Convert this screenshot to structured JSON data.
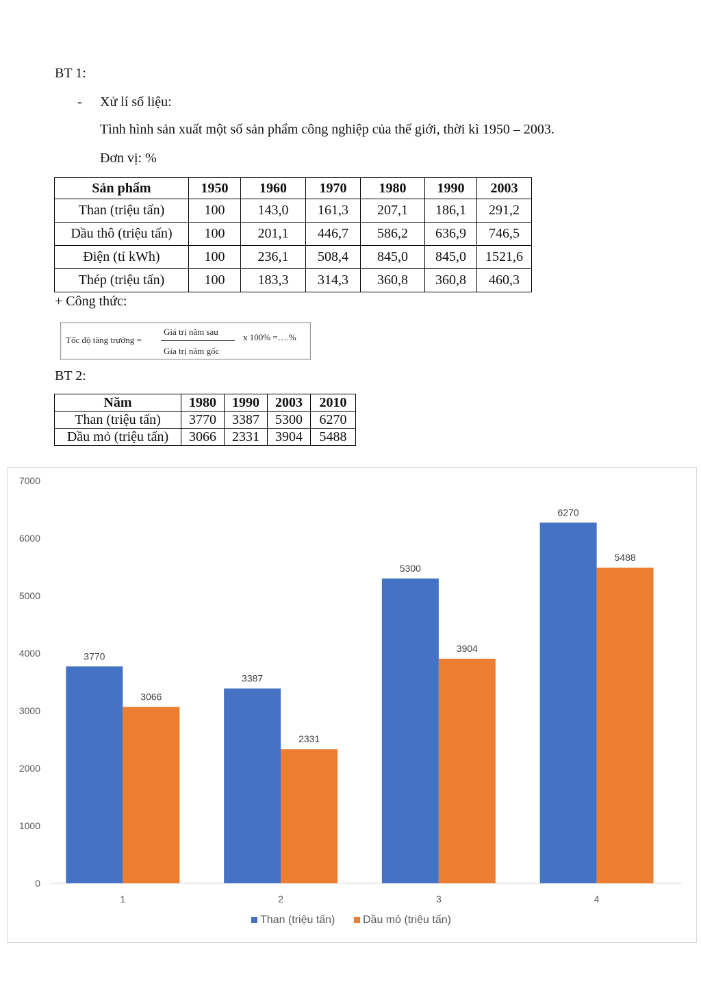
{
  "bt1": {
    "heading": "BT 1:",
    "bullet": "-",
    "step": "Xử lí số liệu:",
    "description": "Tình hình sản xuất một số sản phẩm công nghiệp của thế giới, thời kì 1950 – 2003.",
    "unit": "Đơn vị: %",
    "table": {
      "headers": [
        "Sản phẩm",
        "1950",
        "1960",
        "1970",
        "1980",
        "1990",
        "2003"
      ],
      "rows": [
        [
          "Than (triệu tấn)",
          "100",
          "143,0",
          "161,3",
          "207,1",
          "186,1",
          "291,2"
        ],
        [
          "Dầu thô (triệu tấn)",
          "100",
          "201,1",
          "446,7",
          "586,2",
          "636,9",
          "746,5"
        ],
        [
          "Điện (tỉ kWh)",
          "100",
          "236,1",
          "508,4",
          "845,0",
          "845,0",
          "1521,6"
        ],
        [
          "Thép (triệu tấn)",
          "100",
          "183,3",
          "314,3",
          "360,8",
          "360,8",
          "460,3"
        ]
      ]
    },
    "formula_label": "+ Công thức:",
    "formula": {
      "lhs": "Tốc độ tăng trưởng =",
      "numerator": "Giá trị năm sau",
      "denominator": "Gía trị năm gốc",
      "rhs": "x 100% =….%"
    }
  },
  "bt2": {
    "heading": "BT 2:",
    "table": {
      "headers": [
        "Năm",
        "1980",
        "1990",
        "2003",
        "2010"
      ],
      "rows": [
        [
          "Than (triệu tấn)",
          "3770",
          "3387",
          "5300",
          "6270"
        ],
        [
          "Dầu mỏ (triệu tấn)",
          "3066",
          "2331",
          "3904",
          "5488"
        ]
      ]
    }
  },
  "chart_data": {
    "type": "bar",
    "categories": [
      "1",
      "2",
      "3",
      "4"
    ],
    "series": [
      {
        "name": "Than (triệu tấn)",
        "values": [
          3770,
          3387,
          5300,
          6270
        ],
        "color": "#4472C4"
      },
      {
        "name": "Dầu mỏ (triệu tấn)",
        "values": [
          3066,
          2331,
          3904,
          5488
        ],
        "color": "#ED7D31"
      }
    ],
    "ylim": [
      0,
      7000
    ],
    "yticks": [
      0,
      1000,
      2000,
      3000,
      4000,
      5000,
      6000,
      7000
    ],
    "grid": false,
    "legend": "bottom"
  }
}
